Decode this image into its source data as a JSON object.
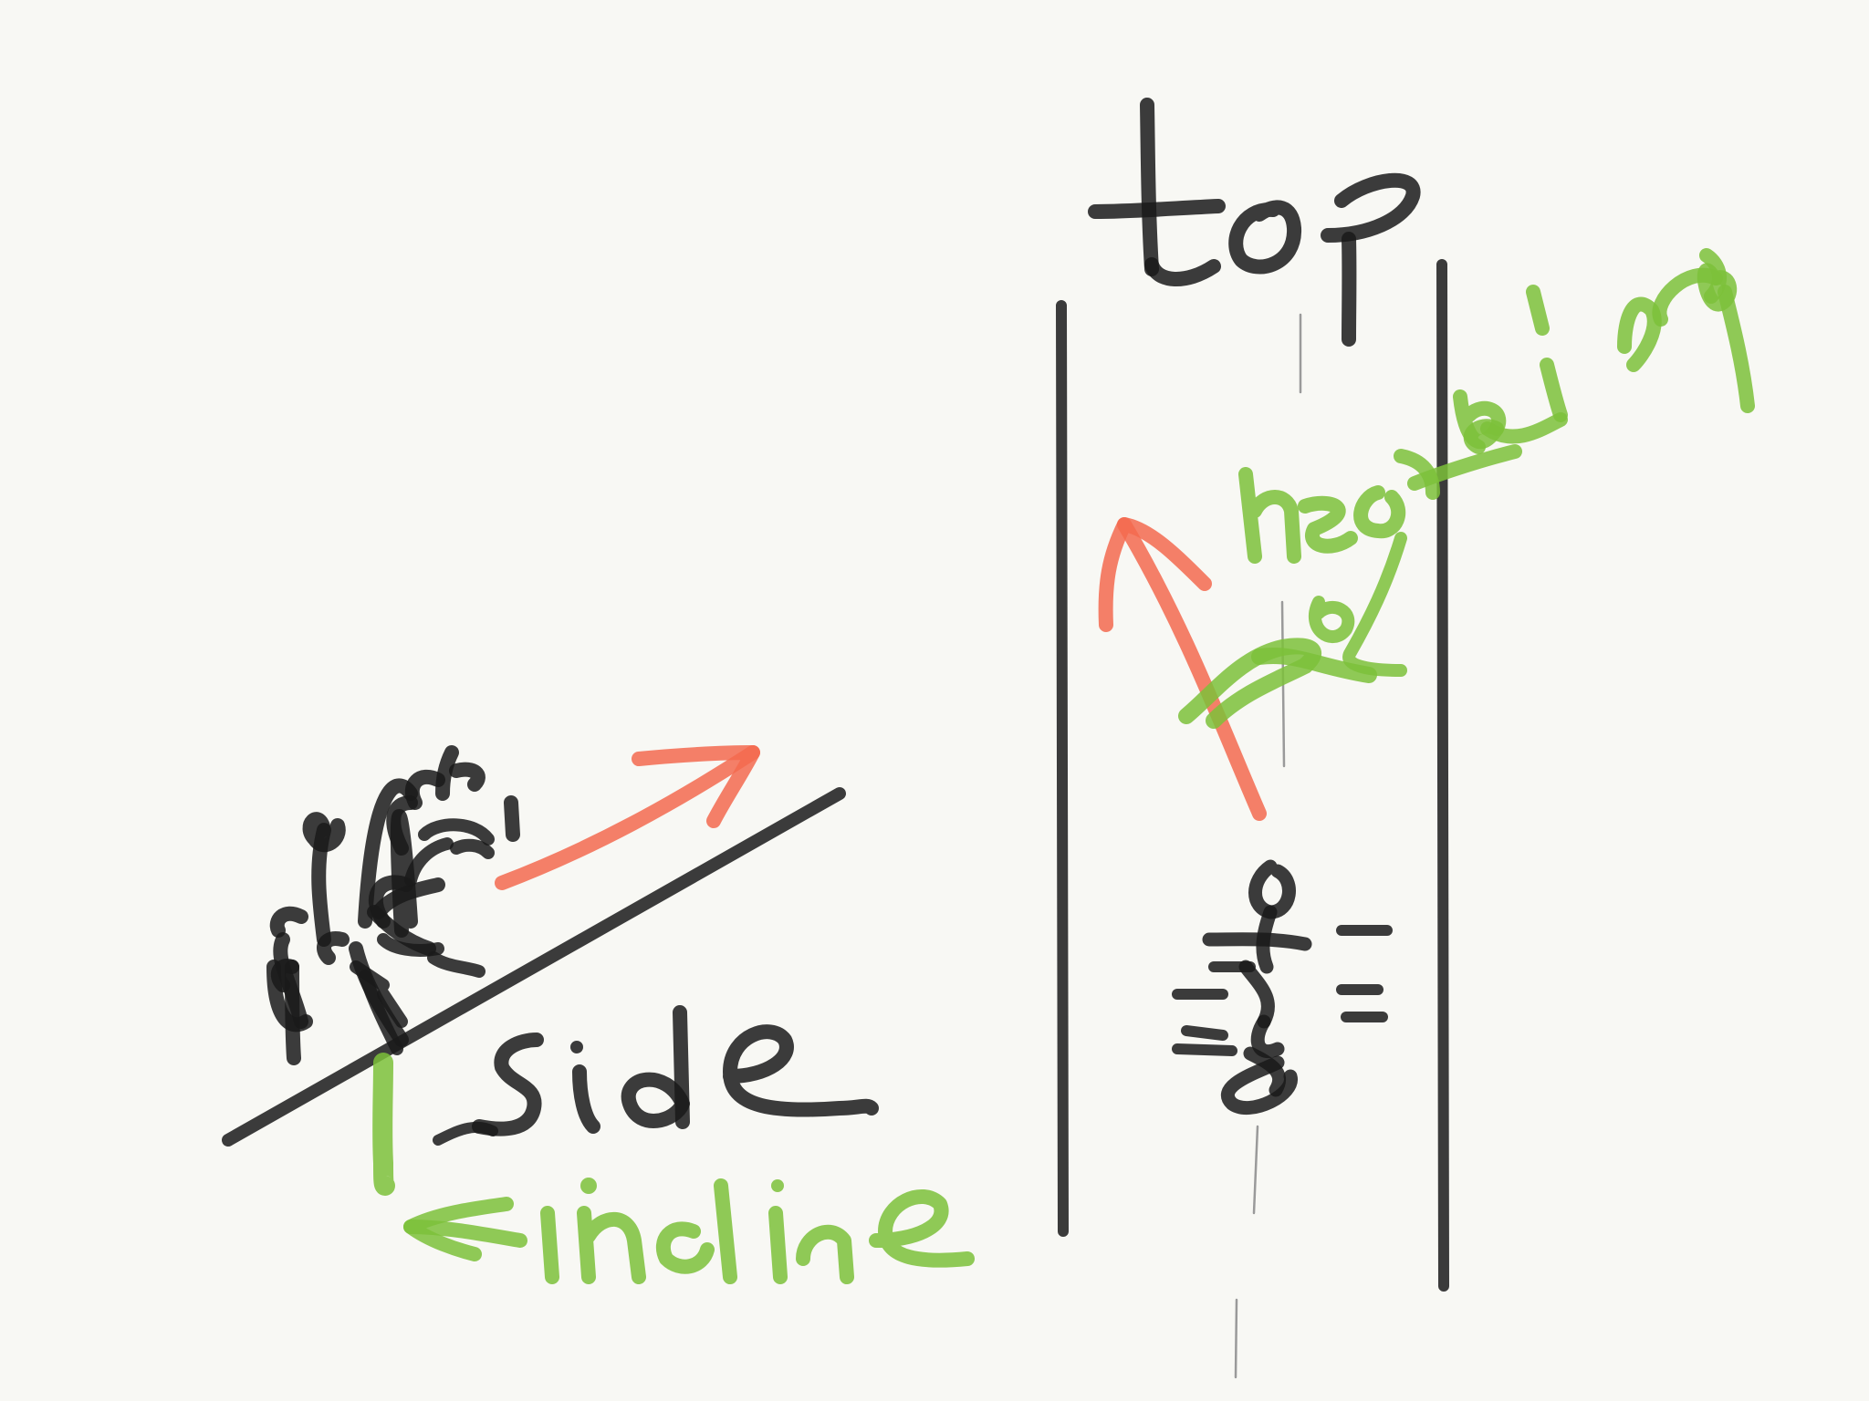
{
  "labels": {
    "top": "top",
    "side": "side",
    "incline": "incline",
    "heading": "heading"
  },
  "colors": {
    "background": "#f8f8f4",
    "ink": "#1a1a1a",
    "annotation": "#7cc13a",
    "motion_arrow": "#f36a4f"
  }
}
